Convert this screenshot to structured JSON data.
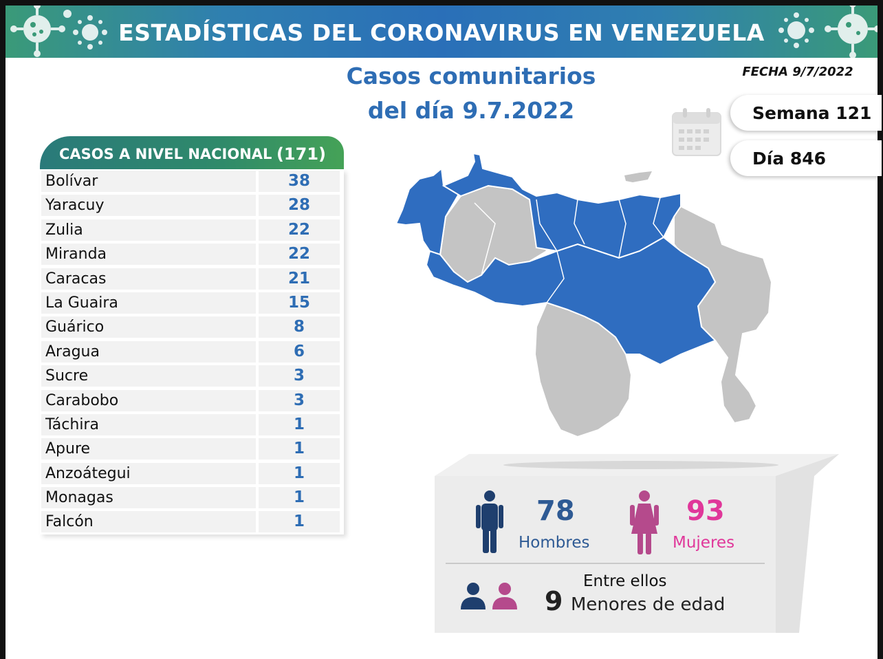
{
  "header": {
    "title": "ESTADÍSTICAS DEL CORONAVIRUS EN VENEZUELA",
    "fecha": "FECHA 9/7/2022",
    "subtitle_line1": "Casos comunitarios",
    "subtitle_line2": "del día 9.7.2022",
    "semana": "Semana 121",
    "dia": "Día 846"
  },
  "table": {
    "heading": "CASOS A NIVEL NACIONAL",
    "total": "(171)",
    "rows": [
      {
        "state": "Bolívar",
        "cases": "38"
      },
      {
        "state": "Yaracuy",
        "cases": "28"
      },
      {
        "state": "Zulia",
        "cases": "22"
      },
      {
        "state": "Miranda",
        "cases": "22"
      },
      {
        "state": "Caracas",
        "cases": "21"
      },
      {
        "state": "La Guaira",
        "cases": "15"
      },
      {
        "state": "Guárico",
        "cases": "8"
      },
      {
        "state": "Aragua",
        "cases": "6"
      },
      {
        "state": "Sucre",
        "cases": "3"
      },
      {
        "state": "Carabobo",
        "cases": "3"
      },
      {
        "state": "Táchira",
        "cases": "1"
      },
      {
        "state": "Apure",
        "cases": "1"
      },
      {
        "state": "Anzoátegui",
        "cases": "1"
      },
      {
        "state": "Monagas",
        "cases": "1"
      },
      {
        "state": "Falcón",
        "cases": "1"
      }
    ]
  },
  "stats": {
    "men_count": "78",
    "men_label": "Hombres",
    "women_count": "93",
    "women_label": "Mujeres",
    "entre_ellos": "Entre ellos",
    "minors_count": "9",
    "minors_label": "Menores de edad"
  },
  "colors": {
    "accent_blue": "#2e6db4",
    "men_color": "#1f3f6e",
    "women_color": "#e0379a",
    "map_highlight": "#2f6dc0",
    "map_other": "#c4c4c4"
  },
  "icons": [
    "virus-icon",
    "calendar-icon",
    "man-icon",
    "woman-icon",
    "children-icon"
  ]
}
